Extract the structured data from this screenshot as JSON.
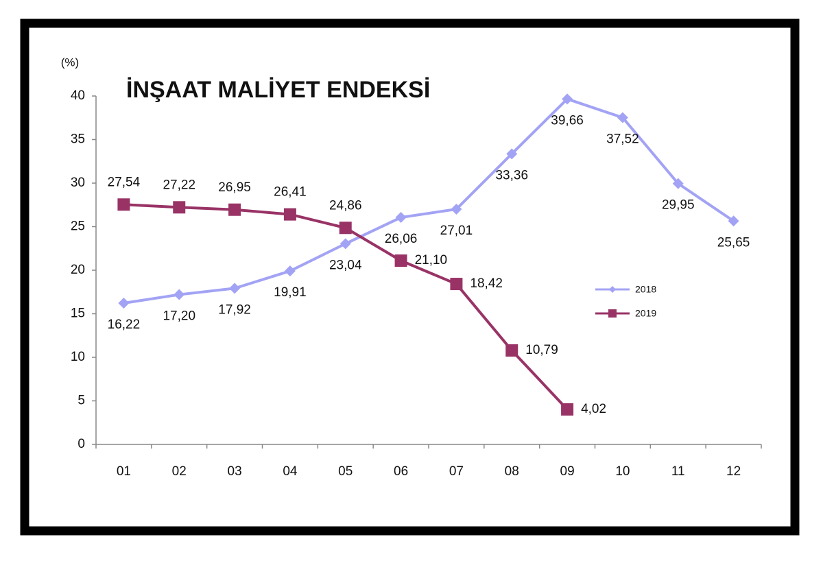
{
  "chart_data": {
    "type": "line",
    "title": "İNŞAAT MALİYET ENDEKSİ",
    "y_label": "(%)",
    "categories": [
      "01",
      "02",
      "03",
      "04",
      "05",
      "06",
      "07",
      "08",
      "09",
      "10",
      "11",
      "12"
    ],
    "series": [
      {
        "name": "2018",
        "color": "#a3a3f5",
        "marker": "diamond",
        "values": [
          16.22,
          17.2,
          17.92,
          19.91,
          23.04,
          26.06,
          27.01,
          33.36,
          39.66,
          37.52,
          29.95,
          25.65
        ],
        "value_labels": [
          "16,22",
          "17,20",
          "17,92",
          "19,91",
          "23,04",
          "26,06",
          "27,01",
          "33,36",
          "39,66",
          "37,52",
          "29,95",
          "25,65"
        ]
      },
      {
        "name": "2019",
        "color": "#993366",
        "marker": "square",
        "values": [
          27.54,
          27.22,
          26.95,
          26.41,
          24.86,
          21.1,
          18.42,
          10.79,
          4.02,
          null,
          null,
          null
        ],
        "value_labels": [
          "27,54",
          "27,22",
          "26,95",
          "26,41",
          "24,86",
          "21,10",
          "18,42",
          "10,79",
          "4,02",
          null,
          null,
          null
        ]
      }
    ],
    "ylim": [
      0,
      40
    ],
    "yticks": [
      0,
      5,
      10,
      15,
      20,
      25,
      30,
      35,
      40
    ],
    "legend": "right"
  }
}
